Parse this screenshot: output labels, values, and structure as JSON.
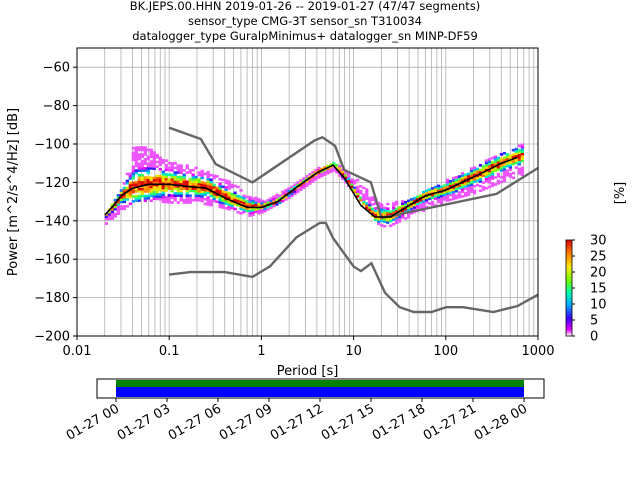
{
  "title_lines": [
    "BK.JEPS.00.HHN   2019-01-26 -- 2019-01-27  (47/47 segments)",
    "sensor_type CMG-3T sensor_sn T310034",
    "datalogger_type GuralpMinimus+ datalogger_sn MINP-DF59"
  ],
  "chart_data": {
    "type": "heatmap",
    "xlabel": "Period [s]",
    "ylabel": "Power [m^2/s^4/Hz] [dB]",
    "x_scale": "log",
    "xlim": [
      0.01,
      1000
    ],
    "ylim": [
      -200,
      -50
    ],
    "grid": true,
    "x_ticks": [
      {
        "value": 0.01,
        "label": "0.01"
      },
      {
        "value": 0.1,
        "label": "0.1"
      },
      {
        "value": 1,
        "label": "1"
      },
      {
        "value": 10,
        "label": "10"
      },
      {
        "value": 100,
        "label": "100"
      },
      {
        "value": 1000,
        "label": "1000"
      }
    ],
    "y_ticks": [
      -60,
      -80,
      -100,
      -120,
      -140,
      -160,
      -180,
      -200
    ],
    "colorbar": {
      "label": "[%]",
      "min": 0,
      "max": 30,
      "ticks": [
        0,
        5,
        10,
        15,
        20,
        25,
        30
      ]
    },
    "nhnm": {
      "name": "NHNM",
      "x": [
        0.1,
        0.22,
        0.32,
        0.8,
        3.8,
        4.6,
        6.3,
        7.9,
        15.4,
        20,
        354.8,
        1000
      ],
      "y": [
        -91.5,
        -97.4,
        -110.5,
        -120,
        -98,
        -96.5,
        -101,
        -113.5,
        -120,
        -138.5,
        -126,
        -112.5
      ]
    },
    "nlnm": {
      "name": "NLNM",
      "x": [
        0.1,
        0.17,
        0.4,
        0.8,
        1.24,
        2.4,
        4.3,
        5,
        6,
        10,
        12,
        15.6,
        21.9,
        31.6,
        45,
        70,
        101,
        154,
        328,
        600,
        1000
      ],
      "y": [
        -168,
        -166.7,
        -166.7,
        -169.2,
        -163.7,
        -148.6,
        -141.1,
        -141.1,
        -149,
        -163.8,
        -166.2,
        -162.1,
        -177.5,
        -185,
        -187.5,
        -187.5,
        -185,
        -185,
        -187.5,
        -184.4,
        -178.5
      ]
    },
    "mean": {
      "name": "mean",
      "x": [
        0.02,
        0.025,
        0.03,
        0.04,
        0.06,
        0.1,
        0.15,
        0.25,
        0.4,
        0.7,
        1,
        1.5,
        2.5,
        4,
        6,
        8,
        12,
        17,
        25,
        40,
        60,
        100,
        150,
        250,
        400,
        600
      ],
      "y": [
        -137,
        -132,
        -127,
        -123,
        -121,
        -121,
        -122,
        -123,
        -128,
        -133,
        -133,
        -130,
        -122,
        -115,
        -111,
        -118,
        -132,
        -138,
        -138,
        -132,
        -127,
        -124,
        -120,
        -115,
        -110,
        -107
      ]
    },
    "spread": {
      "x": [
        0.02,
        0.03,
        0.04,
        0.06,
        0.1,
        0.2,
        0.4,
        0.7,
        1,
        2,
        4,
        6,
        10,
        20,
        40,
        100,
        200,
        400,
        700
      ],
      "low": [
        -142,
        -135,
        -130,
        -130,
        -131,
        -131,
        -134,
        -138,
        -136,
        -128,
        -118,
        -114,
        -126,
        -145,
        -138,
        -130,
        -126,
        -120,
        -116
      ],
      "high": [
        -137,
        -123,
        -101,
        -103,
        -110,
        -113,
        -119,
        -126,
        -130,
        -123,
        -113,
        -110,
        -118,
        -132,
        -129,
        -119,
        -112,
        -105,
        -100
      ]
    },
    "time_axis": {
      "labels": [
        "01-27 00",
        "01-27 03",
        "01-27 06",
        "01-27 09",
        "01-27 12",
        "01-27 15",
        "01-27 18",
        "01-27 21",
        "01-28 00"
      ],
      "coverage_colors": [
        "#008000",
        "#0000ff"
      ]
    }
  }
}
